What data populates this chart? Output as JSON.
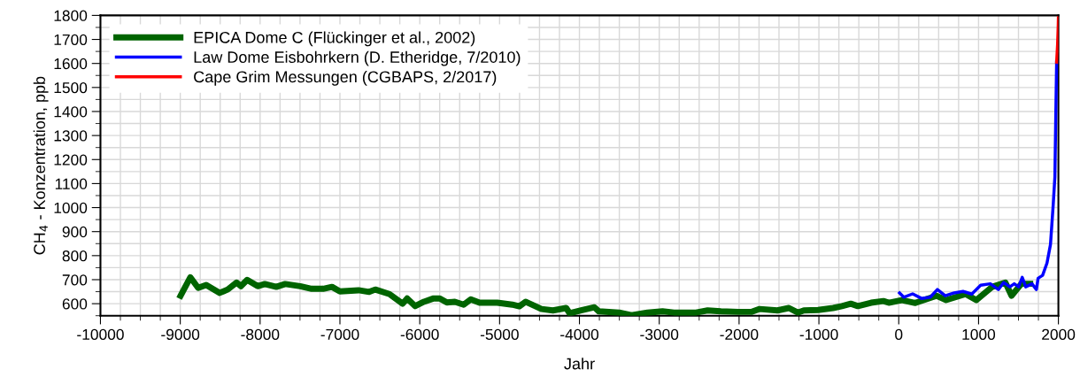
{
  "chart_data": {
    "type": "line",
    "xlabel": "Jahr",
    "ylabel": "CH$_{4}$ - Konzentration, ppb",
    "xlim": [
      -10000,
      2000
    ],
    "ylim": [
      550,
      1800
    ],
    "xticks": [
      -10000,
      {
        "value": -9750,
        "label": null
      },
      {
        "value": -9500,
        "label": null
      },
      {
        "value": -9250,
        "label": null
      },
      -9000,
      {
        "value": -8750,
        "label": null
      },
      {
        "value": -8500,
        "label": null
      },
      {
        "value": -8250,
        "label": null
      },
      -8000,
      {
        "value": -7750,
        "label": null
      },
      {
        "value": -7500,
        "label": null
      },
      {
        "value": -7250,
        "label": null
      },
      -7000,
      {
        "value": -6750,
        "label": null
      },
      {
        "value": -6500,
        "label": null
      },
      {
        "value": -6250,
        "label": null
      },
      -6000,
      {
        "value": -5750,
        "label": null
      },
      {
        "value": -5500,
        "label": null
      },
      {
        "value": -5250,
        "label": null
      },
      -5000,
      {
        "value": -4750,
        "label": null
      },
      {
        "value": -4500,
        "label": null
      },
      {
        "value": -4250,
        "label": null
      },
      -4000,
      {
        "value": -3750,
        "label": null
      },
      {
        "value": -3500,
        "label": null
      },
      {
        "value": -3250,
        "label": null
      },
      -3000,
      {
        "value": -2750,
        "label": null
      },
      {
        "value": -2500,
        "label": null
      },
      {
        "value": -2250,
        "label": null
      },
      -2000,
      {
        "value": -1750,
        "label": null
      },
      {
        "value": -1500,
        "label": null
      },
      {
        "value": -1250,
        "label": null
      },
      -1000,
      {
        "value": -750,
        "label": null
      },
      {
        "value": -500,
        "label": null
      },
      {
        "value": -250,
        "label": null
      },
      0,
      {
        "value": 250,
        "label": null
      },
      {
        "value": 500,
        "label": null
      },
      {
        "value": 750,
        "label": null
      },
      1000,
      {
        "value": 1250,
        "label": null
      },
      {
        "value": 1500,
        "label": null
      },
      {
        "value": 1750,
        "label": null
      },
      2000
    ],
    "yticks": [
      {
        "value": 550,
        "label": null
      },
      600,
      {
        "value": 650,
        "label": null
      },
      700,
      {
        "value": 750,
        "label": null
      },
      800,
      {
        "value": 850,
        "label": null
      },
      900,
      {
        "value": 950,
        "label": null
      },
      1000,
      {
        "value": 1050,
        "label": null
      },
      1100,
      {
        "value": 1150,
        "label": null
      },
      1200,
      {
        "value": 1250,
        "label": null
      },
      1300,
      {
        "value": 1350,
        "label": null
      },
      1400,
      {
        "value": 1450,
        "label": null
      },
      1500,
      {
        "value": 1550,
        "label": null
      },
      1600,
      {
        "value": 1650,
        "label": null
      },
      1700,
      {
        "value": 1750,
        "label": null
      },
      1800
    ],
    "grid": true,
    "legend": "top left",
    "marker": "none",
    "line_style": "solid",
    "series": [
      {
        "name": "EPICA Dome C (Flückinger et al., 2002)",
        "color": "#006400",
        "x": [
          -8996,
          -8874,
          -8776,
          -8675,
          -8506,
          -8406,
          -8295,
          -8240,
          -8162,
          -8030,
          -7941,
          -7797,
          -7686,
          -7498,
          -7354,
          -7210,
          -7100,
          -7000,
          -6767,
          -6634,
          -6557,
          -6380,
          -6214,
          -6158,
          -6059,
          -5948,
          -5826,
          -5749,
          -5660,
          -5560,
          -5450,
          -5361,
          -5250,
          -5029,
          -4841,
          -4753,
          -4675,
          -4476,
          -4332,
          -4166,
          -4122,
          -3978,
          -3812,
          -3756,
          -3502,
          -3347,
          -3147,
          -2959,
          -2815,
          -2538,
          -2394,
          -2228,
          -2007,
          -1841,
          -1741,
          -1520,
          -1376,
          -1265,
          -1188,
          -1011,
          -822,
          -711,
          -601,
          -512,
          -346,
          -192,
          -125,
          41,
          207,
          472,
          594,
          838,
          971,
          1170,
          1336,
          1414,
          1536,
          1646
        ],
        "values": [
          633,
          710,
          666,
          678,
          645,
          659,
          688,
          673,
          699,
          673,
          682,
          670,
          682,
          673,
          662,
          662,
          670,
          651,
          656,
          649,
          659,
          640,
          600,
          622,
          590,
          608,
          622,
          622,
          605,
          608,
          596,
          618,
          604,
          604,
          596,
          589,
          608,
          578,
          572,
          582,
          560,
          572,
          585,
          568,
          563,
          552,
          563,
          568,
          563,
          563,
          572,
          568,
          566,
          566,
          578,
          572,
          582,
          563,
          572,
          574,
          582,
          590,
          600,
          590,
          604,
          611,
          604,
          615,
          603,
          633,
          615,
          640,
          615,
          670,
          688,
          633,
          683,
          683
        ]
      },
      {
        "name": "Law Dome Eisbohrkern (D. Etheridge, 7/2010)",
        "color": "#0000ff",
        "x": [
          10,
          63,
          174,
          285,
          395,
          484,
          583,
          694,
          805,
          915,
          1026,
          1148,
          1248,
          1314,
          1392,
          1447,
          1502,
          1547,
          1591,
          1669,
          1724,
          1746,
          1802,
          1857,
          1901,
          1934,
          1956,
          1967,
          1978
        ],
        "values": [
          645,
          627,
          641,
          622,
          627,
          659,
          633,
          645,
          651,
          640,
          677,
          683,
          659,
          688,
          670,
          683,
          670,
          710,
          670,
          683,
          659,
          706,
          718,
          769,
          847,
          1007,
          1128,
          1374,
          1606
        ]
      },
      {
        "name": "Cape Grim Messungen (CGBAPS, 2/2017)",
        "color": "#ff0000",
        "x": [
          1978,
          1990,
          1998,
          2000
        ],
        "values": [
          1606,
          1680,
          1760,
          1790
        ]
      }
    ]
  }
}
